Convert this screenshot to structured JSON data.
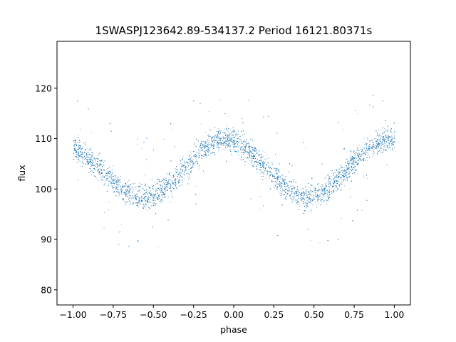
{
  "chart_data": {
    "type": "scatter",
    "title": "1SWASPJ123642.89-534137.2 Period 16121.80371s",
    "xlabel": "phase",
    "ylabel": "flux",
    "xlim": [
      -1.1,
      1.1
    ],
    "ylim": [
      77,
      129.3
    ],
    "xticks": [
      -1.0,
      -0.75,
      -0.5,
      -0.25,
      0.0,
      0.25,
      0.5,
      0.75,
      1.0
    ],
    "xtick_labels": [
      "−1.00",
      "−0.75",
      "−0.50",
      "−0.25",
      "0.00",
      "0.25",
      "0.50",
      "0.75",
      "1.00"
    ],
    "yticks": [
      80,
      90,
      100,
      110,
      120
    ],
    "ytick_labels": [
      "80",
      "90",
      "100",
      "110",
      "120"
    ],
    "grid": false,
    "point_color": "#1f77b4",
    "series": [
      {
        "phase_range": [
          -1.0,
          1.0
        ],
        "model_curve": {
          "phase": [
            -1.0,
            -0.9,
            -0.8,
            -0.75,
            -0.7,
            -0.6,
            -0.55,
            -0.5,
            -0.4,
            -0.3,
            -0.25,
            -0.2,
            -0.1,
            -0.05,
            0.0,
            0.1,
            0.2,
            0.25,
            0.3,
            0.4,
            0.45,
            0.5,
            0.6,
            0.7,
            0.75,
            0.8,
            0.9,
            0.95,
            1.0
          ],
          "flux": [
            108.5,
            106.0,
            103.0,
            101.5,
            100.0,
            98.6,
            98.5,
            98.8,
            101.0,
            104.0,
            106.0,
            108.0,
            109.8,
            110.0,
            109.5,
            107.5,
            104.5,
            103.0,
            101.0,
            98.6,
            98.3,
            98.6,
            100.5,
            103.5,
            105.5,
            107.5,
            109.3,
            109.8,
            109.5
          ]
        },
        "scatter_halfwidth": 2.0,
        "outlier_range": [
          80,
          127
        ]
      }
    ]
  }
}
